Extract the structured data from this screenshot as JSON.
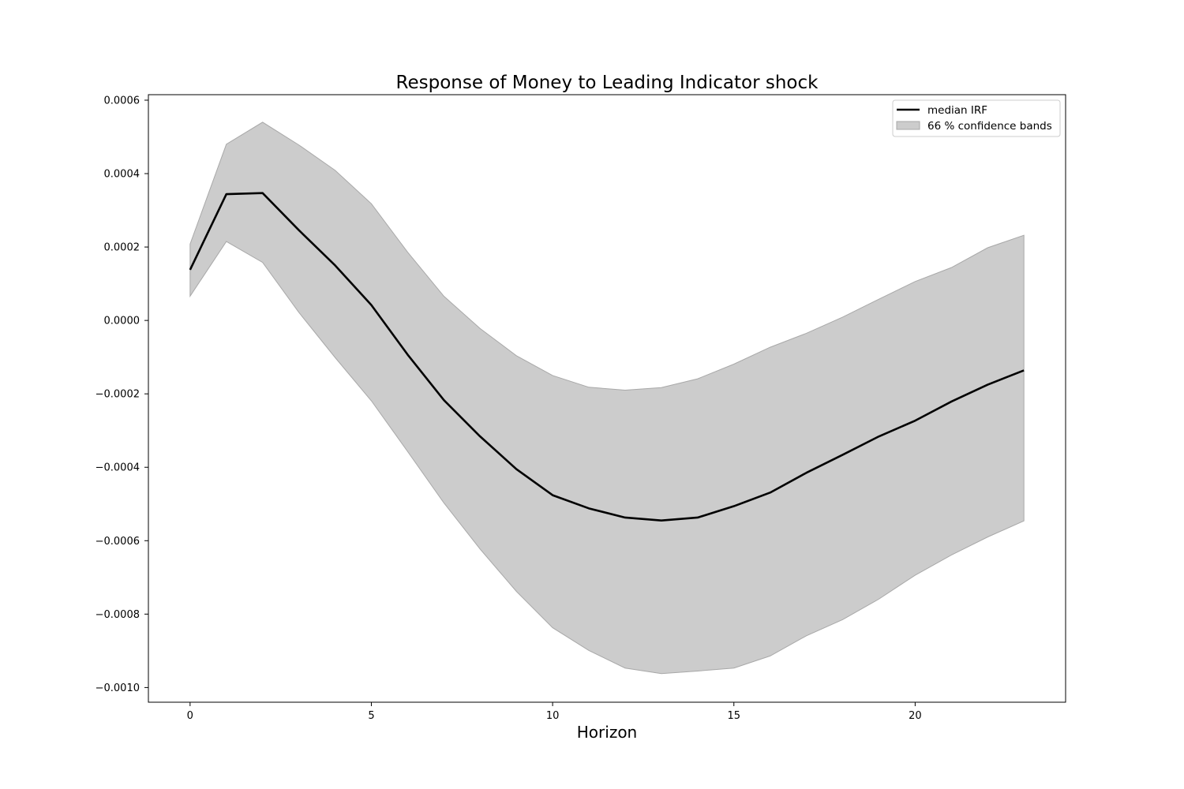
{
  "chart_data": {
    "type": "line",
    "title": "Response of Money to Leading Indicator shock",
    "xlabel": "Horizon",
    "ylabel": "",
    "xlim": [
      -1.15,
      24.15
    ],
    "ylim": [
      -0.00104,
      0.000615
    ],
    "x_ticks": [
      0,
      5,
      10,
      15,
      20
    ],
    "x_tick_labels": [
      "0",
      "5",
      "10",
      "15",
      "20"
    ],
    "y_ticks": [
      0.0006,
      0.0004,
      0.0002,
      0.0,
      -0.0002,
      -0.0004,
      -0.0006,
      -0.0008,
      -0.001
    ],
    "y_tick_labels": [
      "0.0006",
      "0.0004",
      "0.0002",
      "0.0000",
      "−0.0002",
      "−0.0004",
      "−0.0006",
      "−0.0008",
      "−0.0010"
    ],
    "grid": false,
    "legend_position": "top-right",
    "x": [
      0,
      1,
      2,
      3,
      4,
      5,
      6,
      7,
      8,
      9,
      10,
      11,
      12,
      13,
      14,
      15,
      16,
      17,
      18,
      19,
      20,
      21,
      22,
      23
    ],
    "series": [
      {
        "name": "median IRF",
        "kind": "line",
        "color": "#000000",
        "values": [
          0.000138,
          0.000344,
          0.000347,
          0.000246,
          0.00015,
          4.2e-05,
          -9.3e-05,
          -0.000217,
          -0.000316,
          -0.000405,
          -0.000476,
          -0.000512,
          -0.000537,
          -0.000545,
          -0.000537,
          -0.000506,
          -0.000469,
          -0.000415,
          -0.000366,
          -0.000316,
          -0.000273,
          -0.000221,
          -0.000175,
          -0.000136
        ]
      },
      {
        "name": "66 % confidence bands",
        "kind": "band",
        "color": "#cccccc",
        "edge_color": "#a8a8a8",
        "upper": [
          0.000208,
          0.00048,
          0.00054,
          0.000478,
          0.000409,
          0.000318,
          0.000186,
          6.6e-05,
          -2.2e-05,
          -9.6e-05,
          -0.00015,
          -0.000182,
          -0.00019,
          -0.000183,
          -0.000159,
          -0.000119,
          -7.3e-05,
          -3.5e-05,
          9e-06,
          5.8e-05,
          0.000106,
          0.000144,
          0.000198,
          0.000232
        ],
        "lower": [
          6.6e-05,
          0.000215,
          0.000158,
          2.2e-05,
          -0.000101,
          -0.000219,
          -0.000357,
          -0.000497,
          -0.000623,
          -0.000738,
          -0.000837,
          -0.000899,
          -0.000947,
          -0.000962,
          -0.000955,
          -0.000947,
          -0.000914,
          -0.000859,
          -0.000815,
          -0.000759,
          -0.000694,
          -0.000639,
          -0.00059,
          -0.000546
        ]
      }
    ]
  }
}
